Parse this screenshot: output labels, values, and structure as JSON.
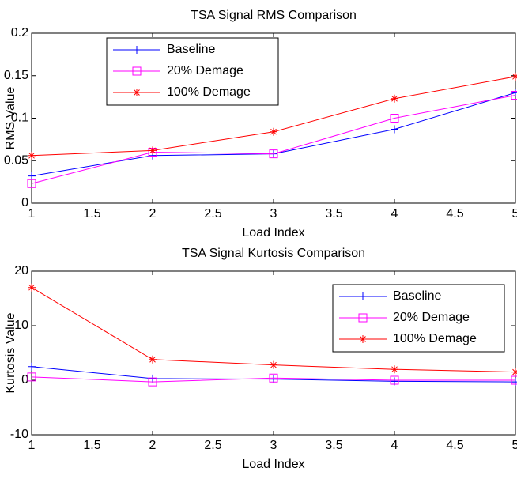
{
  "chart_data": [
    {
      "type": "line",
      "title": "TSA Signal RMS Comparison",
      "xlabel": "Load Index",
      "ylabel": "RMS Value",
      "x": [
        1,
        2,
        3,
        4,
        5
      ],
      "xlim": [
        1,
        5
      ],
      "xticks": [
        1,
        1.5,
        2,
        2.5,
        3,
        3.5,
        4,
        4.5,
        5
      ],
      "ylim": [
        0,
        0.2
      ],
      "yticks": [
        0,
        0.05,
        0.1,
        0.15,
        0.2
      ],
      "legend": "northwest",
      "series": [
        {
          "name": "Baseline",
          "color": "#0000ff",
          "marker": "plus",
          "values": [
            0.032,
            0.056,
            0.058,
            0.087,
            0.13
          ]
        },
        {
          "name": "20% Demage",
          "color": "#ff00ff",
          "marker": "square",
          "values": [
            0.023,
            0.06,
            0.058,
            0.1,
            0.127
          ]
        },
        {
          "name": "100% Demage",
          "color": "#ff0000",
          "marker": "asterisk",
          "values": [
            0.056,
            0.062,
            0.084,
            0.123,
            0.149
          ]
        }
      ]
    },
    {
      "type": "line",
      "title": "TSA Signal Kurtosis Comparison",
      "xlabel": "Load Index",
      "ylabel": "Kurtosis Value",
      "x": [
        1,
        2,
        3,
        4,
        5
      ],
      "xlim": [
        1,
        5
      ],
      "xticks": [
        1,
        1.5,
        2,
        2.5,
        3,
        3.5,
        4,
        4.5,
        5
      ],
      "ylim": [
        -10,
        20
      ],
      "yticks": [
        -10,
        0,
        10,
        20
      ],
      "legend": "northeast",
      "series": [
        {
          "name": "Baseline",
          "color": "#0000ff",
          "marker": "plus",
          "values": [
            2.5,
            0.3,
            0.2,
            -0.2,
            -0.3
          ]
        },
        {
          "name": "20% Demage",
          "color": "#ff00ff",
          "marker": "square",
          "values": [
            0.6,
            -0.3,
            0.4,
            0.0,
            0.0
          ]
        },
        {
          "name": "100% Demage",
          "color": "#ff0000",
          "marker": "asterisk",
          "values": [
            17,
            3.8,
            2.8,
            2.0,
            1.5
          ]
        }
      ]
    }
  ]
}
